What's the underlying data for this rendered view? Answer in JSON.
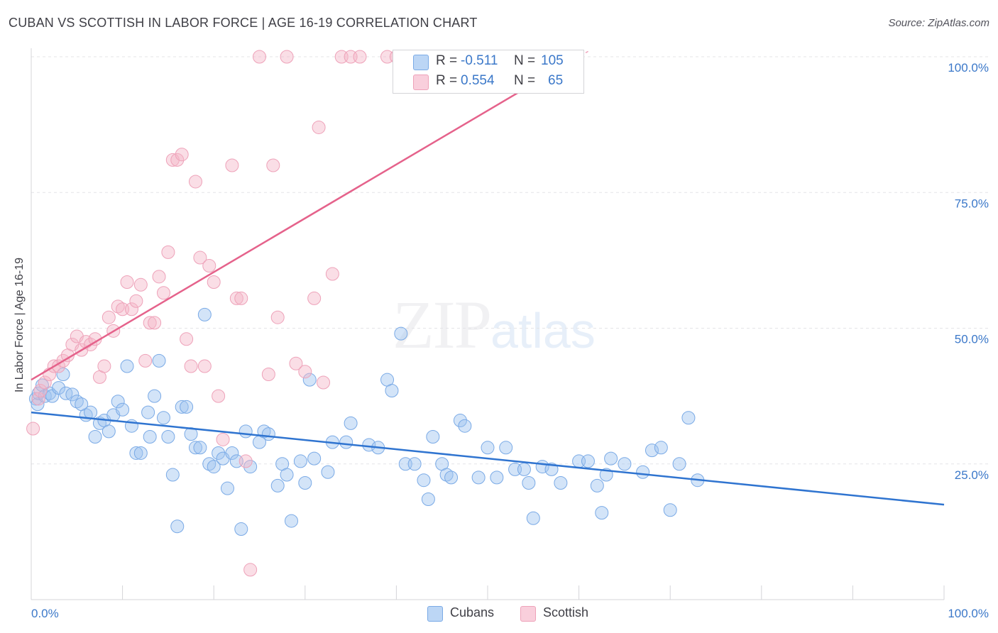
{
  "header": {
    "title": "CUBAN VS SCOTTISH IN LABOR FORCE | AGE 16-19 CORRELATION CHART",
    "source": "Source: ZipAtlas.com"
  },
  "watermark": {
    "zip": "ZIP",
    "atlas": "atlas"
  },
  "legend": {
    "rows": [
      {
        "r_label": "R =",
        "r_value": "-0.511",
        "n_label": "N =",
        "n_value": "105",
        "color": "#9dc3f0"
      },
      {
        "r_label": "R =",
        "r_value": "0.554",
        "n_label": "N =",
        "n_value": "65",
        "color": "#f5b6c8"
      }
    ]
  },
  "bottom_legend": {
    "items": [
      "Cubans",
      "Scottish"
    ]
  },
  "colors": {
    "cubans_fill": "rgba(157,195,240,0.45)",
    "cubans_stroke": "#7aaae6",
    "cubans_line": "#2f74d0",
    "scottish_fill": "rgba(245,182,200,0.45)",
    "scottish_stroke": "#eea2b9",
    "scottish_line": "#e5628b",
    "tick_text": "#3b78c9"
  },
  "chart_data": {
    "type": "scatter",
    "title": "CUBAN VS SCOTTISH IN LABOR FORCE | AGE 16-19 CORRELATION CHART",
    "xlabel": "",
    "ylabel": "In Labor Force | Age 16-19",
    "xlim": [
      0,
      100
    ],
    "ylim": [
      0,
      100
    ],
    "x_tick_labels": [
      {
        "value": 0,
        "label": "0.0%"
      },
      {
        "value": 100,
        "label": "100.0%"
      }
    ],
    "y_tick_labels": [
      {
        "value": 25,
        "label": "25.0%"
      },
      {
        "value": 50,
        "label": "50.0%"
      },
      {
        "value": 75,
        "label": "75.0%"
      },
      {
        "value": 100,
        "label": "100.0%"
      }
    ],
    "grid": true,
    "legend_position": "top-center",
    "series": [
      {
        "name": "Cubans",
        "R": -0.511,
        "N": 105,
        "trend": {
          "x": [
            0,
            100
          ],
          "y": [
            34.5,
            17.5
          ]
        },
        "points": [
          [
            0.5,
            37
          ],
          [
            0.7,
            36
          ],
          [
            0.8,
            38
          ],
          [
            1.2,
            39.5
          ],
          [
            1.5,
            37.5
          ],
          [
            2,
            38
          ],
          [
            2.3,
            37.5
          ],
          [
            3,
            39
          ],
          [
            3.5,
            41.5
          ],
          [
            3.8,
            38
          ],
          [
            4.5,
            37.8
          ],
          [
            5,
            36.5
          ],
          [
            5.5,
            36
          ],
          [
            6,
            34
          ],
          [
            6.5,
            34.5
          ],
          [
            7,
            30
          ],
          [
            7.5,
            32.5
          ],
          [
            8,
            33
          ],
          [
            8.5,
            31
          ],
          [
            9,
            34
          ],
          [
            9.5,
            36.5
          ],
          [
            10,
            35
          ],
          [
            10.5,
            43
          ],
          [
            11,
            32
          ],
          [
            11.5,
            27
          ],
          [
            12,
            27
          ],
          [
            12.8,
            34.5
          ],
          [
            13,
            30
          ],
          [
            13.5,
            37.5
          ],
          [
            14,
            44
          ],
          [
            14.5,
            33.5
          ],
          [
            15,
            30
          ],
          [
            15.5,
            23
          ],
          [
            16,
            13.5
          ],
          [
            16.5,
            35.5
          ],
          [
            17,
            35.5
          ],
          [
            17.5,
            30.5
          ],
          [
            18,
            28
          ],
          [
            18.5,
            28
          ],
          [
            19,
            52.5
          ],
          [
            19.5,
            25
          ],
          [
            20,
            24.5
          ],
          [
            20.5,
            27
          ],
          [
            21,
            26
          ],
          [
            21.5,
            20.5
          ],
          [
            22,
            27
          ],
          [
            22.5,
            25.5
          ],
          [
            23,
            13
          ],
          [
            23.5,
            31
          ],
          [
            24,
            24.5
          ],
          [
            25,
            29
          ],
          [
            25.5,
            31
          ],
          [
            26,
            30.5
          ],
          [
            27,
            21
          ],
          [
            27.5,
            25
          ],
          [
            28,
            23
          ],
          [
            28.5,
            14.5
          ],
          [
            29.5,
            25.5
          ],
          [
            30,
            21.5
          ],
          [
            30.5,
            40.5
          ],
          [
            31,
            26
          ],
          [
            32.5,
            23.5
          ],
          [
            33,
            29
          ],
          [
            34.5,
            29
          ],
          [
            35,
            32.5
          ],
          [
            37,
            28.5
          ],
          [
            38,
            28
          ],
          [
            39,
            40.5
          ],
          [
            39.5,
            38.5
          ],
          [
            40.5,
            49
          ],
          [
            41,
            25
          ],
          [
            42,
            25
          ],
          [
            43,
            22
          ],
          [
            43.5,
            18.5
          ],
          [
            44,
            30
          ],
          [
            45,
            25
          ],
          [
            45.5,
            23
          ],
          [
            46,
            22.5
          ],
          [
            47,
            33
          ],
          [
            47.5,
            32
          ],
          [
            49,
            22.5
          ],
          [
            50,
            28
          ],
          [
            51,
            22.5
          ],
          [
            52,
            28
          ],
          [
            53,
            24
          ],
          [
            54,
            24
          ],
          [
            54.5,
            21.5
          ],
          [
            55,
            15
          ],
          [
            56,
            24.5
          ],
          [
            57,
            24
          ],
          [
            58,
            21.5
          ],
          [
            60,
            25.5
          ],
          [
            61,
            25.5
          ],
          [
            62,
            21
          ],
          [
            62.5,
            16
          ],
          [
            63,
            23
          ],
          [
            63.5,
            26
          ],
          [
            65,
            25
          ],
          [
            67,
            23.5
          ],
          [
            68,
            27.5
          ],
          [
            69,
            28
          ],
          [
            70,
            16.5
          ],
          [
            71,
            25
          ],
          [
            72,
            33.5
          ],
          [
            73,
            22
          ]
        ]
      },
      {
        "name": "Scottish",
        "R": 0.554,
        "N": 65,
        "trend": {
          "x": [
            0,
            60
          ],
          "y": [
            40.5,
            100
          ]
        },
        "points": [
          [
            0.2,
            31.5
          ],
          [
            0.8,
            37
          ],
          [
            1,
            38.5
          ],
          [
            1.5,
            40
          ],
          [
            2,
            41.5
          ],
          [
            2.5,
            43
          ],
          [
            3,
            43
          ],
          [
            3.5,
            44
          ],
          [
            4,
            45
          ],
          [
            4.5,
            47
          ],
          [
            5,
            48.5
          ],
          [
            5.5,
            46
          ],
          [
            6,
            47.5
          ],
          [
            6.5,
            47
          ],
          [
            7,
            48
          ],
          [
            7.5,
            41
          ],
          [
            8,
            43
          ],
          [
            8.5,
            52
          ],
          [
            9,
            49.5
          ],
          [
            9.5,
            54
          ],
          [
            10,
            53.5
          ],
          [
            10.5,
            58.5
          ],
          [
            11,
            53.5
          ],
          [
            11.5,
            55
          ],
          [
            12,
            58
          ],
          [
            12.5,
            44
          ],
          [
            13,
            51
          ],
          [
            13.5,
            51
          ],
          [
            14,
            59.5
          ],
          [
            14.5,
            56.5
          ],
          [
            15,
            64
          ],
          [
            15.5,
            81
          ],
          [
            16,
            81
          ],
          [
            16.5,
            82
          ],
          [
            17,
            48
          ],
          [
            17.5,
            43
          ],
          [
            18,
            77
          ],
          [
            18.5,
            63
          ],
          [
            19,
            43
          ],
          [
            19.5,
            61.5
          ],
          [
            20,
            58.5
          ],
          [
            20.5,
            37.5
          ],
          [
            21,
            29.5
          ],
          [
            22,
            80
          ],
          [
            22.5,
            55.5
          ],
          [
            23,
            55.5
          ],
          [
            23.5,
            25.5
          ],
          [
            24,
            5.5
          ],
          [
            25,
            100
          ],
          [
            26,
            41.5
          ],
          [
            26.5,
            80
          ],
          [
            27,
            52
          ],
          [
            28,
            100
          ],
          [
            29,
            43.5
          ],
          [
            30,
            42
          ],
          [
            31,
            55.5
          ],
          [
            31.5,
            87
          ],
          [
            32,
            40
          ],
          [
            33,
            60
          ],
          [
            34,
            100
          ],
          [
            35,
            100
          ],
          [
            36,
            100
          ],
          [
            39,
            100
          ],
          [
            40,
            100
          ],
          [
            41,
            100
          ]
        ]
      }
    ]
  }
}
